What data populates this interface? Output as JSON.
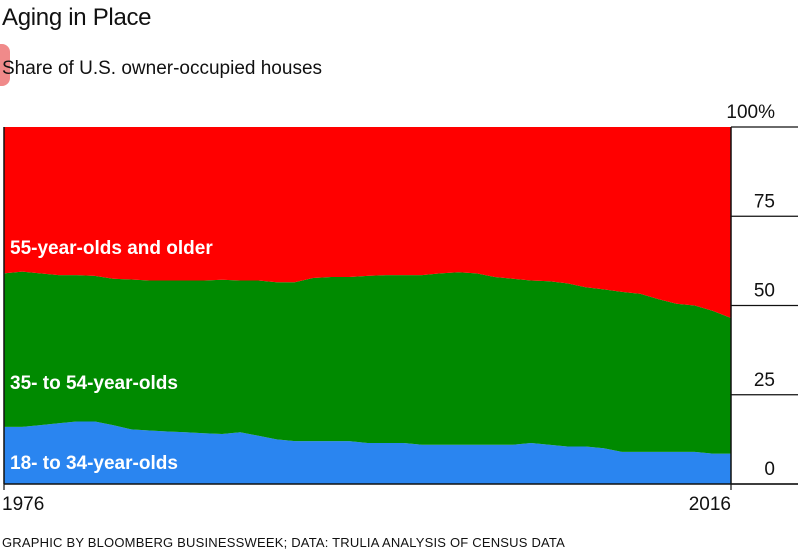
{
  "title": "Aging in Place",
  "subtitle": "Share of U.S. owner-occupied houses",
  "source": "GRAPHIC BY BLOOMBERG BUSINESSWEEK; DATA: TRULIA ANALYSIS OF CENSUS DATA",
  "colors": {
    "older": "#ff0000",
    "middle": "#008a00",
    "young": "#2a85f0",
    "axis": "#111111"
  },
  "chart_data": {
    "type": "area",
    "stacked": true,
    "x_tick_labels": [
      "1976",
      "2016"
    ],
    "y_tick_labels": [
      "0",
      "25",
      "50",
      "75",
      "100%"
    ],
    "ylim": [
      0,
      100
    ],
    "y_ticks": [
      0,
      25,
      50,
      75,
      100
    ],
    "years": [
      1976,
      1977,
      1978,
      1979,
      1980,
      1981,
      1982,
      1983,
      1984,
      1985,
      1986,
      1987,
      1988,
      1989,
      1990,
      1991,
      1992,
      1993,
      1994,
      1995,
      1996,
      1997,
      1998,
      1999,
      2000,
      2001,
      2002,
      2003,
      2004,
      2005,
      2006,
      2007,
      2008,
      2009,
      2010,
      2011,
      2012,
      2013,
      2014,
      2015,
      2016
    ],
    "series": [
      {
        "name": "18- to 34-year-olds",
        "color_key": "young",
        "values": [
          16.0,
          16.0,
          16.5,
          17.0,
          17.5,
          17.5,
          16.5,
          15.3,
          15.0,
          14.7,
          14.5,
          14.2,
          14.0,
          14.5,
          13.5,
          12.5,
          12.0,
          12.0,
          12.0,
          12.0,
          11.5,
          11.5,
          11.5,
          11.0,
          11.0,
          11.0,
          11.0,
          11.0,
          11.0,
          11.5,
          11.0,
          10.5,
          10.5,
          10.0,
          9.0,
          9.0,
          9.0,
          9.0,
          9.0,
          8.5,
          8.5
        ]
      },
      {
        "name": "35- to 54-year-olds",
        "color_key": "middle",
        "values": [
          43.0,
          43.5,
          42.5,
          41.5,
          41.0,
          40.8,
          41.0,
          42.0,
          42.0,
          42.3,
          42.5,
          42.8,
          43.2,
          42.5,
          43.5,
          44.0,
          44.5,
          45.7,
          46.0,
          46.0,
          46.8,
          47.0,
          47.0,
          47.5,
          48.0,
          48.3,
          48.0,
          47.0,
          46.5,
          45.5,
          45.8,
          45.7,
          44.6,
          44.5,
          44.8,
          44.3,
          42.8,
          41.5,
          41.0,
          40.0,
          38.0
        ]
      },
      {
        "name": "55-year-olds and older",
        "color_key": "older",
        "values": [
          41.0,
          40.5,
          41.0,
          41.5,
          41.5,
          41.7,
          42.5,
          42.7,
          43.0,
          43.0,
          43.0,
          43.0,
          42.8,
          43.0,
          43.0,
          43.5,
          43.5,
          42.3,
          42.0,
          42.0,
          41.7,
          41.5,
          41.5,
          41.5,
          41.0,
          40.7,
          41.0,
          42.0,
          42.5,
          43.0,
          43.2,
          43.8,
          44.9,
          45.5,
          46.2,
          46.7,
          48.2,
          49.5,
          50.0,
          51.5,
          53.5
        ]
      }
    ],
    "grid": false,
    "legend": "inline labels on areas"
  }
}
